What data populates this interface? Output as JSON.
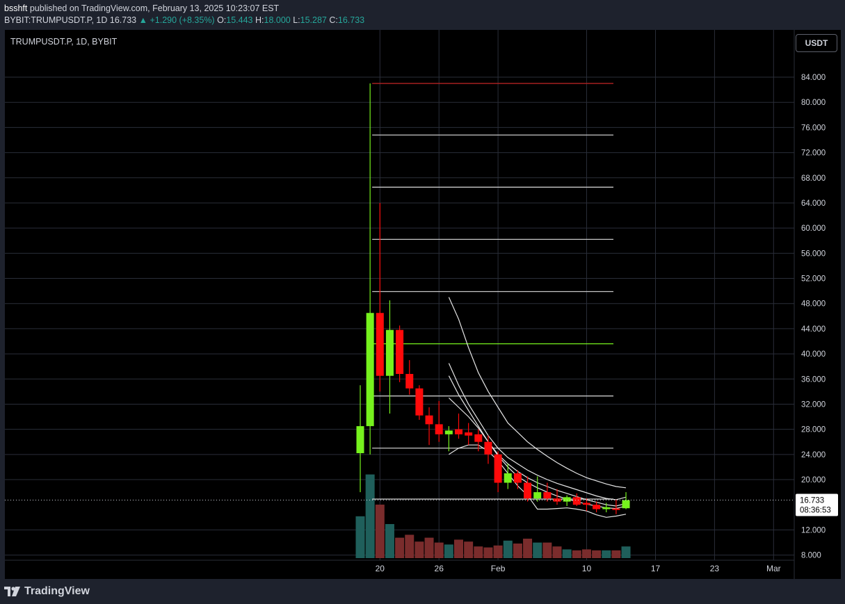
{
  "header": {
    "author": "bsshft",
    "published_text": "published on TradingView.com, February 13, 2025 10:23:07 EST",
    "symbol": "BYBIT:TRUMPUSDT.P, 1D",
    "last": "16.733",
    "change": "▲ +1.290 (+8.35%)",
    "o_label": "O:",
    "o_value": "15.443",
    "h_label": "H:",
    "h_value": "18.000",
    "l_label": "L:",
    "l_value": "15.287",
    "c_label": "C:",
    "c_value": "16.733"
  },
  "chart_legend": "TRUMPUSDT.P, 1D, BYBIT",
  "currency_button": "USDT",
  "footer": {
    "brand": "TradingView"
  },
  "colors": {
    "up": "#76f21d",
    "down": "#ff0a0a",
    "vol_up": "#1f5f5b",
    "vol_down": "#7a2c2c",
    "grid": "#2a2e39"
  },
  "chart_data": {
    "type": "candlestick",
    "y_ticks": [
      "84.000",
      "80.000",
      "76.000",
      "72.000",
      "68.000",
      "64.000",
      "60.000",
      "56.000",
      "52.000",
      "48.000",
      "44.000",
      "40.000",
      "36.000",
      "32.000",
      "28.000",
      "24.000",
      "20.000",
      "12.000",
      "8.000"
    ],
    "x_ticks": [
      "20",
      "26",
      "Feb",
      "10",
      "17",
      "23",
      "Mar"
    ],
    "last_price_label": "16.733",
    "countdown_label": "08:36:53",
    "ylim": [
      7,
      88
    ],
    "candles": [
      {
        "o": 24.2,
        "h": 35.0,
        "l": 18.0,
        "c": 28.5
      },
      {
        "o": 28.5,
        "h": 83.0,
        "l": 24.0,
        "c": 46.5
      },
      {
        "o": 46.5,
        "h": 64.0,
        "l": 34.0,
        "c": 36.5
      },
      {
        "o": 36.5,
        "h": 48.5,
        "l": 30.5,
        "c": 43.8
      },
      {
        "o": 43.8,
        "h": 44.5,
        "l": 35.5,
        "c": 36.8
      },
      {
        "o": 36.8,
        "h": 39.0,
        "l": 33.5,
        "c": 34.5
      },
      {
        "o": 34.5,
        "h": 35.0,
        "l": 29.5,
        "c": 30.2
      },
      {
        "o": 30.2,
        "h": 31.5,
        "l": 25.5,
        "c": 28.8
      },
      {
        "o": 28.8,
        "h": 32.5,
        "l": 26.0,
        "c": 27.2
      },
      {
        "o": 27.2,
        "h": 28.5,
        "l": 24.5,
        "c": 27.8
      },
      {
        "o": 28.0,
        "h": 30.5,
        "l": 26.5,
        "c": 27.2
      },
      {
        "o": 27.5,
        "h": 29.0,
        "l": 25.5,
        "c": 27.0
      },
      {
        "o": 27.2,
        "h": 28.0,
        "l": 24.5,
        "c": 26.0
      },
      {
        "o": 26.0,
        "h": 27.0,
        "l": 22.5,
        "c": 24.0
      },
      {
        "o": 24.0,
        "h": 24.5,
        "l": 18.0,
        "c": 19.5
      },
      {
        "o": 19.5,
        "h": 22.5,
        "l": 18.5,
        "c": 21.0
      },
      {
        "o": 21.0,
        "h": 21.5,
        "l": 18.5,
        "c": 19.5
      },
      {
        "o": 19.5,
        "h": 20.5,
        "l": 16.5,
        "c": 17.0
      },
      {
        "o": 17.0,
        "h": 20.5,
        "l": 16.5,
        "c": 18.0
      },
      {
        "o": 18.0,
        "h": 19.5,
        "l": 16.5,
        "c": 17.0
      },
      {
        "o": 17.0,
        "h": 18.5,
        "l": 16.0,
        "c": 16.5
      },
      {
        "o": 16.5,
        "h": 17.5,
        "l": 15.8,
        "c": 17.2
      },
      {
        "o": 17.2,
        "h": 17.8,
        "l": 15.8,
        "c": 16.0
      },
      {
        "o": 16.3,
        "h": 17.0,
        "l": 15.0,
        "c": 16.0
      },
      {
        "o": 16.0,
        "h": 16.5,
        "l": 14.8,
        "c": 15.3
      },
      {
        "o": 15.3,
        "h": 16.3,
        "l": 14.8,
        "c": 15.6
      },
      {
        "o": 15.4,
        "h": 16.8,
        "l": 14.5,
        "c": 15.2
      },
      {
        "o": 15.443,
        "h": 18.0,
        "l": 15.287,
        "c": 16.733
      }
    ],
    "volume": [
      0.43,
      0.86,
      0.55,
      0.35,
      0.21,
      0.24,
      0.17,
      0.21,
      0.16,
      0.14,
      0.19,
      0.17,
      0.12,
      0.11,
      0.13,
      0.18,
      0.15,
      0.2,
      0.16,
      0.16,
      0.12,
      0.09,
      0.08,
      0.09,
      0.08,
      0.08,
      0.08,
      0.12
    ],
    "horizontal_levels": [
      {
        "price": 83.0,
        "color": "#b22222"
      },
      {
        "price": 74.8,
        "color": "#c8c8c8"
      },
      {
        "price": 66.5,
        "color": "#c8c8c8"
      },
      {
        "price": 58.2,
        "color": "#c8c8c8"
      },
      {
        "price": 49.9,
        "color": "#c8c8c8"
      },
      {
        "price": 41.6,
        "color": "#76f21d"
      },
      {
        "price": 33.3,
        "color": "#c8c8c8"
      },
      {
        "price": 25.0,
        "color": "#c8c8c8"
      },
      {
        "price": 16.9,
        "color": "#c8c8c8"
      }
    ],
    "bands": [
      {
        "start": 9,
        "values": [
          49.0,
          45.5,
          41.0,
          37.0,
          34.0,
          31.5,
          29.0,
          27.5,
          26.0,
          24.8,
          23.7,
          22.7,
          21.8,
          21.0,
          20.3,
          19.8,
          19.3,
          18.9,
          18.7
        ]
      },
      {
        "start": 9,
        "values": [
          38.5,
          35.0,
          32.0,
          29.5,
          27.0,
          25.0,
          23.5,
          22.5,
          21.5,
          20.7,
          20.0,
          19.4,
          18.9,
          18.4,
          17.9,
          17.4,
          17.0,
          16.8,
          17.2
        ]
      },
      {
        "start": 9,
        "values": [
          36.5,
          33.5,
          31.0,
          28.5,
          26.0,
          24.0,
          22.5,
          21.3,
          20.3,
          19.5,
          18.9,
          18.3,
          17.8,
          17.3,
          16.8,
          16.4,
          16.0,
          15.8,
          16.2
        ]
      },
      {
        "start": 9,
        "values": [
          33.0,
          31.5,
          30.0,
          28.2,
          26.0,
          23.8,
          22.0,
          20.5,
          19.5,
          18.7,
          18.0,
          17.4,
          16.9,
          16.5,
          16.1,
          15.8,
          15.5,
          15.4,
          15.8
        ]
      },
      {
        "start": 9,
        "values": [
          24.0,
          25.0,
          25.5,
          25.5,
          24.5,
          23.0,
          21.0,
          19.0,
          17.5,
          15.3,
          15.3,
          15.4,
          15.5,
          15.3,
          15.0,
          14.4,
          14.0,
          14.2,
          14.5
        ]
      }
    ]
  }
}
